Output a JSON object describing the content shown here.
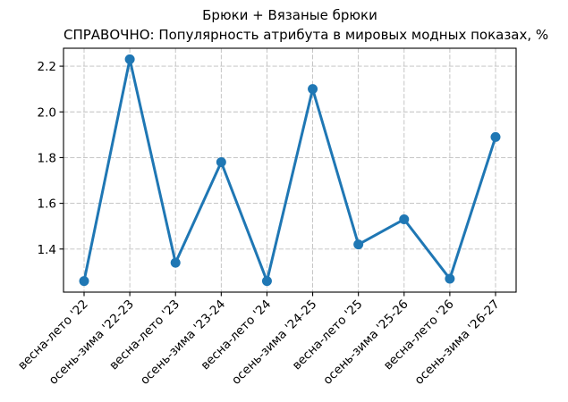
{
  "title": {
    "line1": "Брюки + Вязаные брюки",
    "line2": "СПРАВОЧНО: Популярность атрибута в мировых модных показах, %"
  },
  "chart_data": {
    "type": "line",
    "title": "Брюки + Вязаные брюки\nСПРАВОЧНО: Популярность атрибута в мировых модных показах, %",
    "xlabel": "",
    "ylabel": "",
    "categories": [
      "весна-лето '22",
      "осень-зима '22-23",
      "весна-лето '23",
      "осень-зима '23-24",
      "весна-лето '24",
      "осень-зима '24-25",
      "весна-лето '25",
      "осень-зима '25-26",
      "весна-лето '26",
      "осень-зима '26-27"
    ],
    "values": [
      1.26,
      2.23,
      1.34,
      1.78,
      1.26,
      2.1,
      1.42,
      1.53,
      1.27,
      1.89
    ],
    "yticks": [
      1.4,
      1.6,
      1.8,
      2.0,
      2.2
    ],
    "ytick_labels": [
      "1.4",
      "1.6",
      "1.8",
      "2.0",
      "2.2"
    ],
    "ylim": [
      1.2115,
      2.2785
    ],
    "xlim": [
      -0.45,
      9.45
    ],
    "grid": true,
    "grid_style": "dashed",
    "legend": "none",
    "line_color": "#1f77b4",
    "marker": "o",
    "grid_color": "#bfbfbf",
    "spine_color": "#000000",
    "x_tick_rotation_deg": 45
  }
}
